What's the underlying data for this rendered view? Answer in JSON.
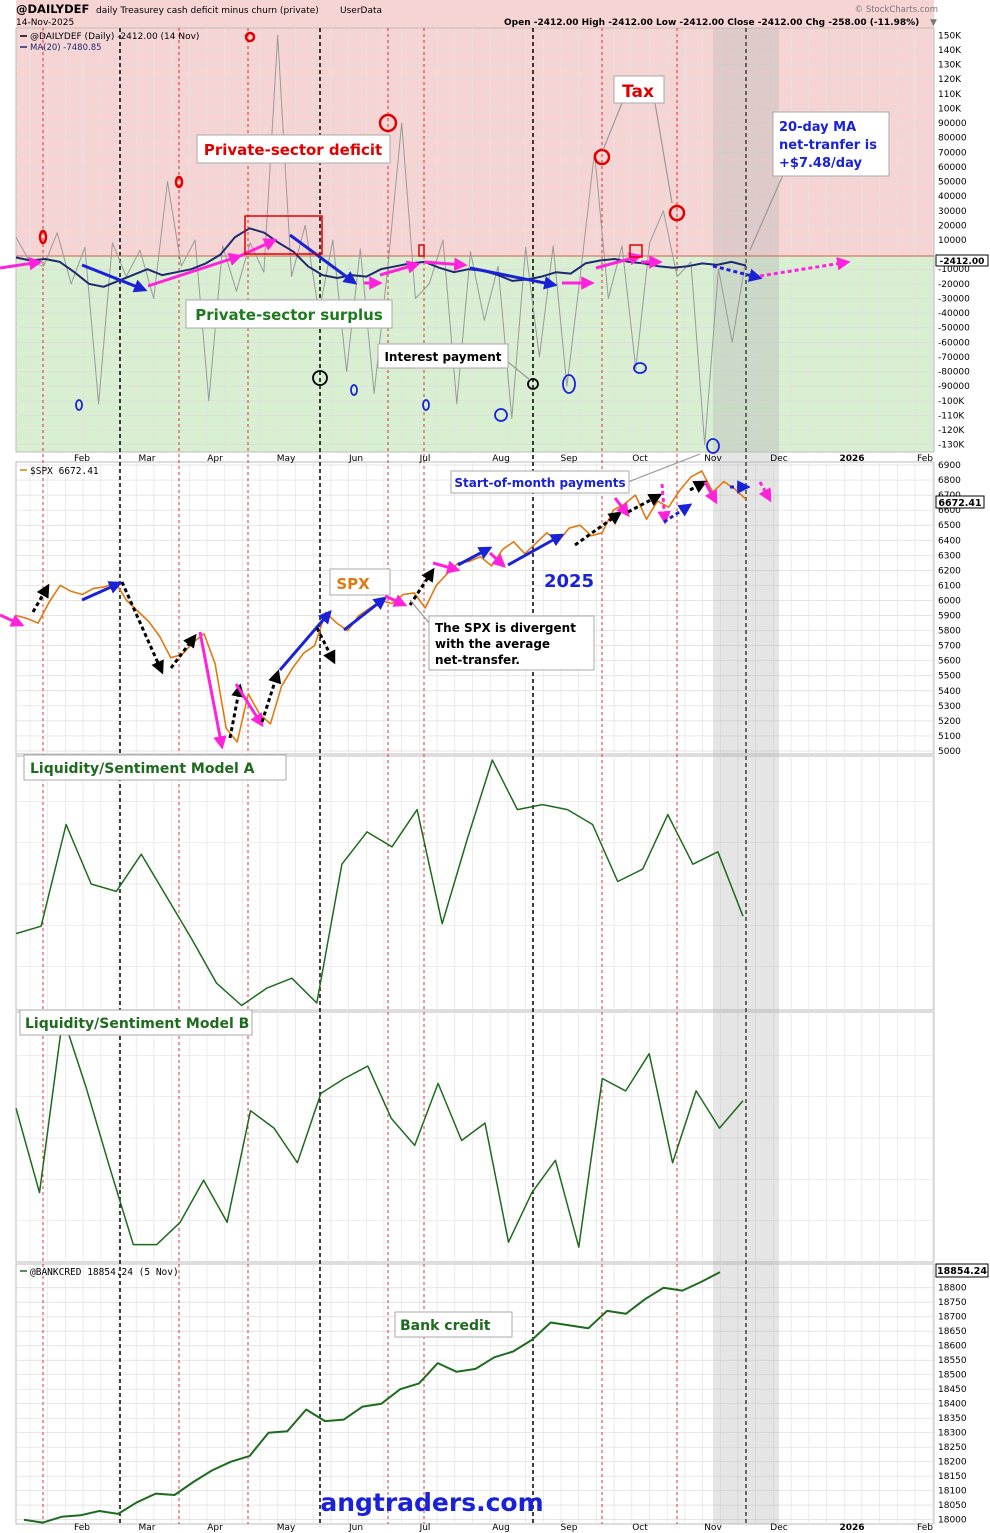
{
  "header": {
    "symbol": "@DAILYDEF",
    "description": "daily Treasurey cash deficit minus churn (private)",
    "source_tag": "UserData",
    "date": "14-Nov-2025",
    "ohlc": "Open -2412.00  High -2412.00  Low -2412.00  Close -2412.00  Chg -258.00 (-11.98%)",
    "credit": "© StockCharts.com"
  },
  "colors": {
    "deficit_zone": "#f7d4d4",
    "surplus_zone": "#d8efd2",
    "ma_line": "#1f2a6e",
    "daily_line": "#9a9a9a",
    "spx_line": "#e07a10",
    "model_line": "#1e6b1e",
    "annotation_red": "#e00000",
    "annotation_blue": "#1a22d6",
    "annotation_magenta": "#ff22dd",
    "annotation_black": "#000000",
    "brand": "#1a22d6"
  },
  "months": [
    "Feb",
    "Mar",
    "Apr",
    "May",
    "Jun",
    "Jul",
    "Aug",
    "Sep",
    "Oct",
    "Nov",
    "Dec",
    "2026",
    "Feb"
  ],
  "annotations": {
    "tax": "Tax",
    "private_deficit": "Private-sector deficit",
    "private_surplus": "Private-sector surplus",
    "interest_payment": "Interest payment",
    "ma_note": [
      "20-day MA",
      "net-tranfer is",
      "+$7.48/day"
    ],
    "start_of_month": "Start-of-month payments",
    "spx": "SPX",
    "year": "2025",
    "divergence": [
      "The SPX is divergent",
      "with the average",
      "net-transfer."
    ],
    "model_a": "Liquidity/Sentiment Model A",
    "model_b": "Liquidity/Sentiment Model B",
    "bank_credit": "Bank credit",
    "brand": "angtraders.com"
  },
  "chart_data": [
    {
      "type": "line",
      "title": "@DAILYDEF daily Treasurey cash deficit minus churn (private)",
      "legend": [
        "@DAILYDEF (Daily) -2412.00 (14 Nov)",
        "MA(20) -7480.85"
      ],
      "last_value_label": "-2412.00",
      "y_ticks": [
        "150K",
        "140K",
        "130K",
        "120K",
        "110K",
        "100K",
        "90000",
        "80000",
        "70000",
        "60000",
        "50000",
        "40000",
        "30000",
        "20000",
        "10000",
        "-10000",
        "-20000",
        "-30000",
        "-40000",
        "-50000",
        "-60000",
        "-70000",
        "-80000",
        "-90000",
        "-100K",
        "-110K",
        "-120K",
        "-130K"
      ],
      "ylim": [
        -135000,
        155000
      ],
      "series": [
        {
          "name": "@DAILYDEF (Daily)",
          "values": [
            12000,
            -5000,
            -8000,
            15000,
            -20000,
            5000,
            -102000,
            8000,
            -15000,
            3000,
            -30000,
            50000,
            -8000,
            10000,
            -100000,
            6000,
            -25000,
            8000,
            -12000,
            150000,
            -15000,
            20000,
            -40000,
            10000,
            -80000,
            4000,
            -95000,
            -8000,
            90000,
            -30000,
            -20000,
            10000,
            -102000,
            2000,
            -45000,
            -8000,
            -112000,
            5000,
            -70000,
            6000,
            -90000,
            -12000,
            70000,
            -30000,
            6000,
            -78000,
            8000,
            30000,
            -15000,
            -5000,
            -130000,
            -10000,
            -60000,
            -2412
          ]
        },
        {
          "name": "MA(20)",
          "values": [
            -2000,
            -4000,
            -3000,
            -5000,
            -12000,
            -20000,
            -22000,
            -18000,
            -14000,
            -10000,
            -14000,
            -12000,
            -10000,
            -6000,
            0,
            12000,
            18000,
            15000,
            8000,
            2000,
            -8000,
            -14000,
            -16000,
            -14000,
            -15000,
            -10000,
            -8000,
            -6000,
            -5000,
            -9000,
            -12000,
            -10000,
            -11000,
            -14000,
            -18000,
            -17000,
            -15000,
            -12000,
            -13000,
            -6000,
            -4000,
            -3000,
            -5000,
            -6000,
            -8000,
            -9000,
            -8000,
            -6000,
            -7000,
            -5000,
            -7481
          ]
        }
      ]
    },
    {
      "type": "line",
      "title": "$SPX 6672.41",
      "last_value_label": "6672.41",
      "y_ticks": [
        "6900",
        "6800",
        "6700",
        "6600",
        "6500",
        "6400",
        "6300",
        "6200",
        "6100",
        "6000",
        "5900",
        "5800",
        "5700",
        "5600",
        "5500",
        "5400",
        "5300",
        "5200",
        "5100",
        "5000"
      ],
      "ylim": [
        4980,
        6920
      ],
      "series": [
        {
          "name": "$SPX",
          "values": [
            5900,
            5880,
            5850,
            5990,
            6100,
            6060,
            6040,
            6080,
            6090,
            6120,
            6000,
            5930,
            5860,
            5760,
            5620,
            5640,
            5720,
            5780,
            5580,
            5150,
            5060,
            5380,
            5250,
            5180,
            5430,
            5550,
            5650,
            5700,
            5920,
            5850,
            5800,
            5900,
            5950,
            6000,
            5980,
            6040,
            6050,
            5950,
            6100,
            6180,
            6250,
            6260,
            6290,
            6230,
            6340,
            6390,
            6310,
            6380,
            6450,
            6390,
            6480,
            6500,
            6430,
            6450,
            6600,
            6640,
            6700,
            6540,
            6660,
            6620,
            6730,
            6820,
            6860,
            6720,
            6790,
            6740,
            6672
          ]
        }
      ]
    },
    {
      "type": "line",
      "title": "Liquidity/Sentiment Model A",
      "series": [
        {
          "name": "Model A",
          "values": [
            0.3,
            0.33,
            0.74,
            0.5,
            0.47,
            0.62,
            0.45,
            0.28,
            0.1,
            0.01,
            0.08,
            0.12,
            0.02,
            0.58,
            0.71,
            0.65,
            0.8,
            0.34,
            0.68,
            1.0,
            0.8,
            0.82,
            0.8,
            0.74,
            0.51,
            0.56,
            0.78,
            0.58,
            0.63,
            0.37
          ]
        }
      ]
    },
    {
      "type": "line",
      "title": "Liquidity/Sentiment Model B",
      "series": [
        {
          "name": "Model B",
          "values": [
            0.62,
            0.28,
            0.99,
            0.7,
            0.38,
            0.07,
            0.07,
            0.16,
            0.33,
            0.16,
            0.61,
            0.54,
            0.4,
            0.68,
            0.74,
            0.79,
            0.58,
            0.47,
            0.72,
            0.49,
            0.56,
            0.08,
            0.28,
            0.41,
            0.06,
            0.74,
            0.69,
            0.84,
            0.4,
            0.69,
            0.54,
            0.65
          ]
        }
      ]
    },
    {
      "type": "line",
      "title": "@BANKCRED 18854.24 (5 Nov)",
      "last_value_label": "18854.24",
      "y_ticks": [
        "18800",
        "18750",
        "18700",
        "18650",
        "18600",
        "18550",
        "18500",
        "18450",
        "18400",
        "18350",
        "18300",
        "18250",
        "18200",
        "18150",
        "18100",
        "18050",
        "18000"
      ],
      "ylim": [
        17985,
        18875
      ],
      "series": [
        {
          "name": "@BANKCRED",
          "values": [
            18000,
            17990,
            18010,
            18015,
            18030,
            18020,
            18060,
            18090,
            18085,
            18130,
            18170,
            18200,
            18220,
            18300,
            18305,
            18380,
            18340,
            18345,
            18390,
            18400,
            18450,
            18470,
            18540,
            18510,
            18520,
            18560,
            18580,
            18620,
            18680,
            18670,
            18660,
            18720,
            18710,
            18760,
            18800,
            18790,
            18820,
            18854
          ]
        }
      ]
    }
  ]
}
